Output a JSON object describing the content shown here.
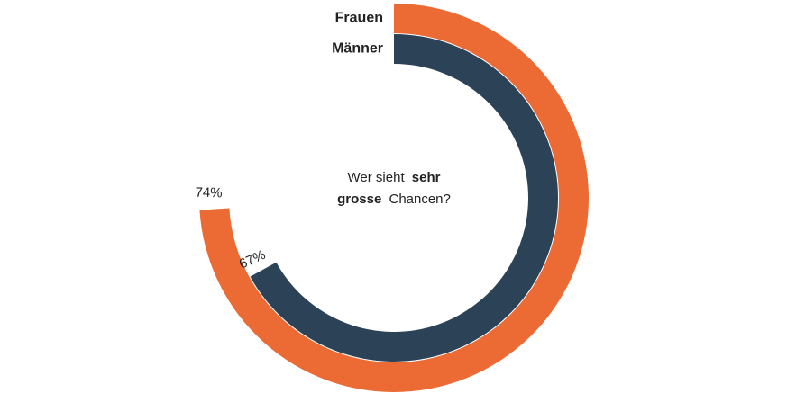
{
  "chart_data": {
    "type": "radial-bar",
    "title_parts": [
      "Wer sieht",
      "sehr",
      "grosse",
      "Chancen?"
    ],
    "series": [
      {
        "name": "Frauen",
        "color": "#ec6b34",
        "values": [
          74
        ],
        "value_labels": [
          "74%"
        ]
      },
      {
        "name": "Männer",
        "color": "#2c4257",
        "values": [
          67
        ],
        "value_labels": [
          "67%"
        ]
      }
    ],
    "ylim": [
      0,
      100
    ]
  }
}
